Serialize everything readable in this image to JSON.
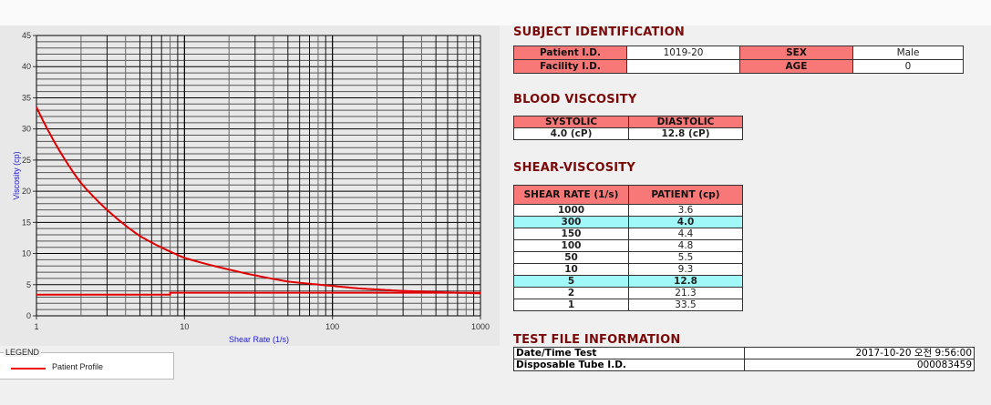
{
  "chart_data": {
    "type": "line",
    "xlabel": "Shear Rate (1/s)",
    "ylabel": "Viscosity (cp)",
    "x_scale": "log",
    "xlim": [
      1,
      1000
    ],
    "ylim": [
      0,
      45
    ],
    "x_ticks": [
      "1",
      "10",
      "100",
      "1000"
    ],
    "y_ticks": [
      "0",
      "5",
      "10",
      "15",
      "20",
      "25",
      "30",
      "35",
      "40",
      "45"
    ],
    "grid": true,
    "legend_position": "bottom-left",
    "series": [
      {
        "name": "Patient Profile",
        "color": "#e00000",
        "x": [
          1,
          2,
          5,
          10,
          50,
          100,
          150,
          300,
          1000
        ],
        "y": [
          33.5,
          21.3,
          12.8,
          9.3,
          5.5,
          4.8,
          4.4,
          4.0,
          3.6
        ]
      },
      {
        "color": "#e00000",
        "x": [
          1,
          8,
          8,
          1000
        ],
        "y": [
          3.4,
          3.4,
          3.7,
          3.7
        ]
      }
    ]
  },
  "legend": {
    "title": "LEGEND",
    "items": [
      "Patient Profile"
    ]
  },
  "subject": {
    "title": "SUBJECT IDENTIFICATION",
    "patient_id_label": "Patient I.D.",
    "patient_id": "1019-20",
    "sex_label": "SEX",
    "sex": "Male",
    "facility_id_label": "Facility I.D.",
    "facility_id": "",
    "age_label": "AGE",
    "age": "0"
  },
  "blood": {
    "title": "BLOOD VISCOSITY",
    "systolic_label": "SYSTOLIC",
    "diastolic_label": "DIASTOLIC",
    "systolic": "4.0 (cP)",
    "diastolic": "12.8 (cP)"
  },
  "shear": {
    "title": "SHEAR-VISCOSITY",
    "headers": [
      "SHEAR RATE (1/s)",
      "PATIENT (cp)"
    ],
    "rows": [
      {
        "rate": "1000",
        "value": "3.6",
        "highlight": false
      },
      {
        "rate": "300",
        "value": "4.0",
        "highlight": true
      },
      {
        "rate": "150",
        "value": "4.4",
        "highlight": false
      },
      {
        "rate": "100",
        "value": "4.8",
        "highlight": false
      },
      {
        "rate": "50",
        "value": "5.5",
        "highlight": false
      },
      {
        "rate": "10",
        "value": "9.3",
        "highlight": false
      },
      {
        "rate": "5",
        "value": "12.8",
        "highlight": true
      },
      {
        "rate": "2",
        "value": "21.3",
        "highlight": false
      },
      {
        "rate": "1",
        "value": "33.5",
        "highlight": false
      }
    ],
    "highlight_color": "#a0f8f8"
  },
  "test_info": {
    "title": "TEST FILE INFORMATION",
    "date_label": "Date/Time Test",
    "date": "2017-10-20   오전 9:56:00",
    "tube_label": "Disposable Tube I.D.",
    "tube": "000083459"
  }
}
